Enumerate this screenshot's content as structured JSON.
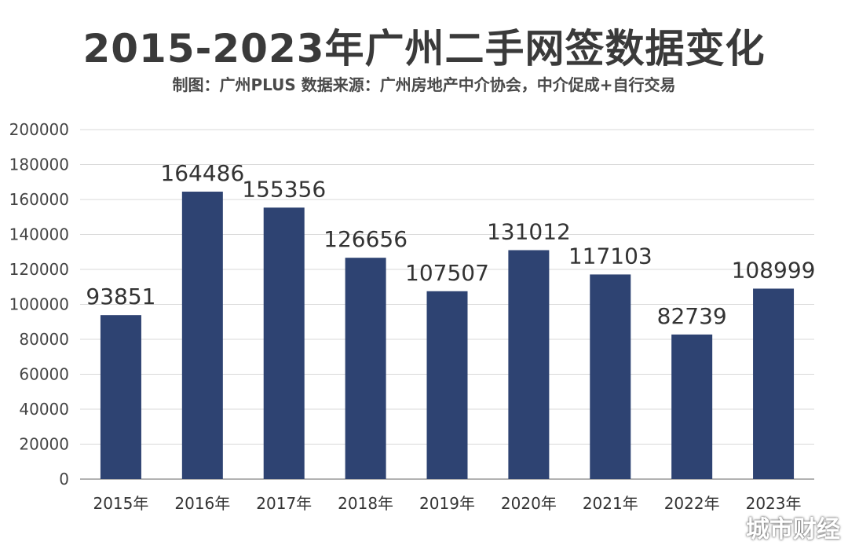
{
  "chart_data": {
    "type": "bar",
    "title": "2015-2023年广州二手网签数据变化",
    "subtitle": "制图：广州PLUS  数据来源：广州房地产中介协会，中介促成+自行交易",
    "categories": [
      "2015年",
      "2016年",
      "2017年",
      "2018年",
      "2019年",
      "2020年",
      "2021年",
      "2022年",
      "2023年"
    ],
    "values": [
      93851,
      164486,
      155356,
      126656,
      107507,
      131012,
      117103,
      82739,
      108999
    ],
    "yticks": [
      0,
      20000,
      40000,
      60000,
      80000,
      100000,
      120000,
      140000,
      160000,
      180000,
      200000
    ],
    "ylim": [
      0,
      200000
    ],
    "grid": true,
    "bar_color": "#2e4372",
    "xlabel": "",
    "ylabel": ""
  },
  "watermark": "城市财经"
}
